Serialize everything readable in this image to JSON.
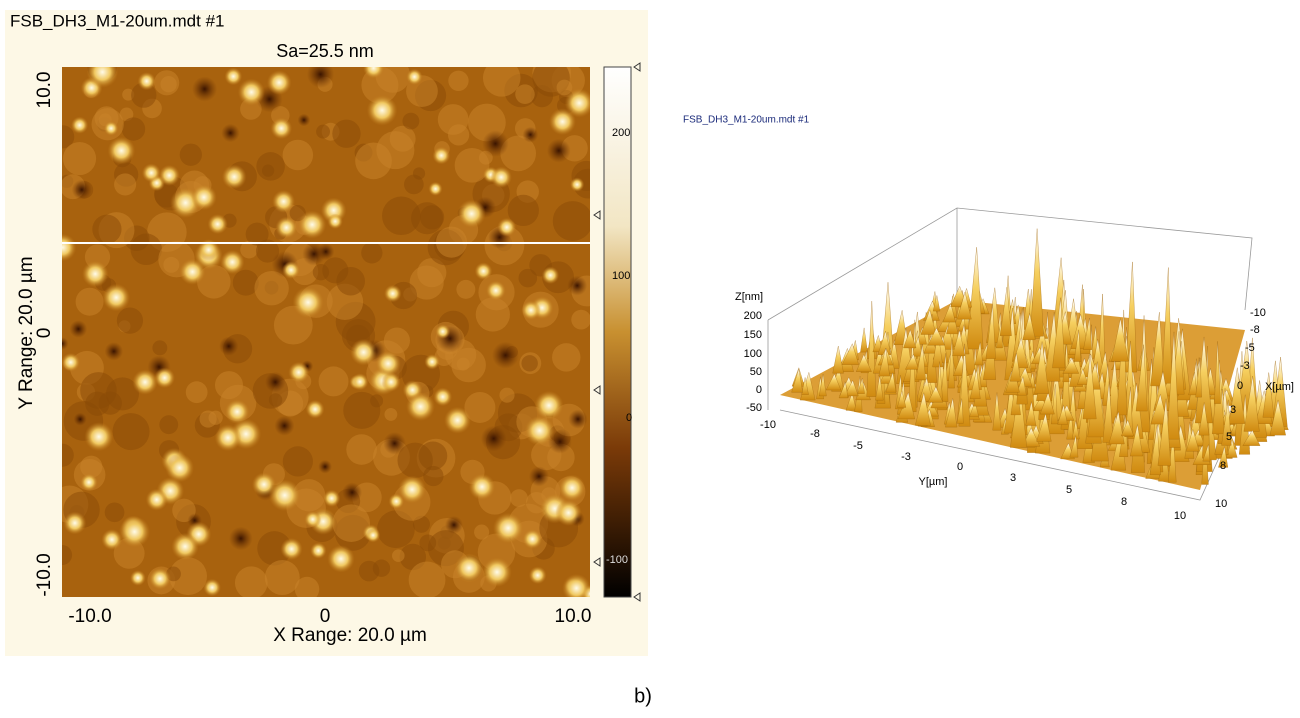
{
  "left_panel": {
    "file_title": "FSB_DH3_M1-20um.mdt #1",
    "subtitle": "Sa=25.5 nm",
    "y_axis": {
      "label": "Y Range: 20.0 µm",
      "ticks": [
        "10.0",
        "0",
        "-10.0"
      ]
    },
    "x_axis": {
      "label": "X Range:  20.0 µm",
      "ticks": [
        "-10.0",
        "0",
        "10.0"
      ]
    },
    "colorbar_ticks": [
      "200",
      "100",
      "0",
      "-100"
    ]
  },
  "right_panel": {
    "file_title": "FSB_DH3_M1-20um.mdt #1",
    "z_label": "Z[nm]",
    "z_ticks": [
      "200",
      "150",
      "100",
      "50",
      "0",
      "-50"
    ],
    "y_label": "Y[µm]",
    "y_ticks": [
      "-10",
      "-8",
      "-5",
      "-3",
      "0",
      "3",
      "5",
      "8",
      "10"
    ],
    "x_label": "X[µm]",
    "x_ticks": [
      "-10",
      "-8",
      "-5",
      "-3",
      "0",
      "3",
      "5",
      "8",
      "10"
    ]
  },
  "caption": "b)"
}
